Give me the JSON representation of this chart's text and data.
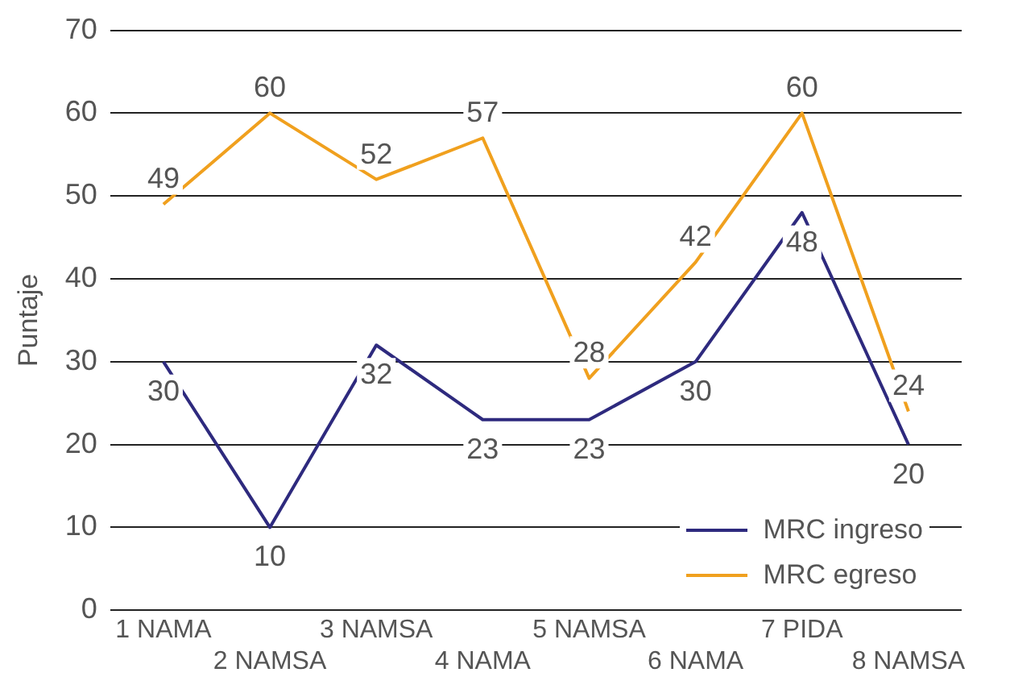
{
  "chart_data": {
    "type": "line",
    "ylabel": "Puntaje",
    "categories": [
      "1 NAMA",
      "2 NAMSA",
      "3 NAMSA",
      "4 NAMA",
      "5 NAMSA",
      "6 NAMA",
      "7 PIDA",
      "8 NAMSA"
    ],
    "series": [
      {
        "name": "MRC ingreso",
        "color": "#2e2a7e",
        "values": [
          30,
          10,
          32,
          23,
          23,
          30,
          48,
          20
        ]
      },
      {
        "name": "MRC egreso",
        "color": "#f0a01e",
        "values": [
          49,
          60,
          52,
          57,
          28,
          42,
          60,
          24
        ]
      }
    ],
    "ylim": [
      0,
      70
    ],
    "yticks": [
      0,
      10,
      20,
      30,
      40,
      50,
      60,
      70
    ],
    "grid": "y",
    "legend": "bottom right",
    "data_labels": true,
    "marker": "none",
    "line_style": "solid"
  }
}
